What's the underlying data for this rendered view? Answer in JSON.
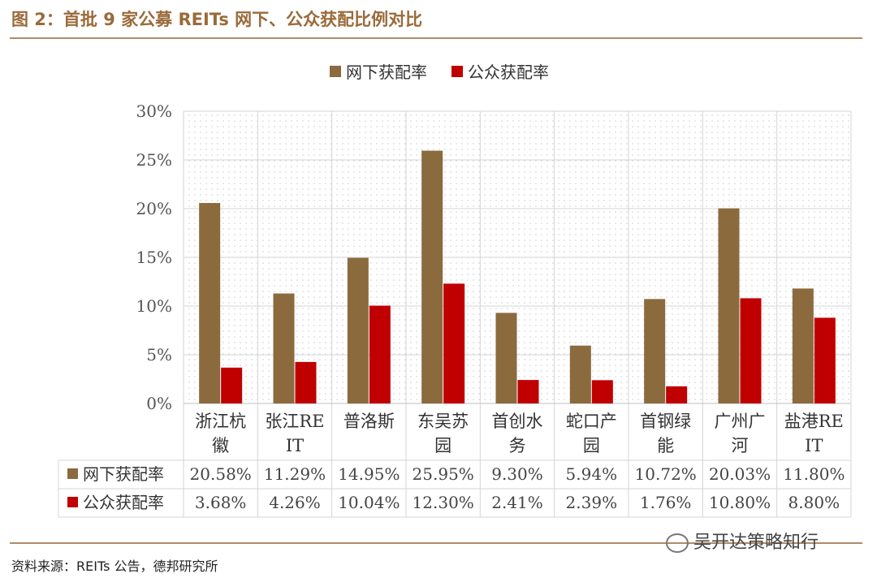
{
  "figure_title": "图 2：首批 9 家公募 REITs 网下、公众获配比例对比",
  "source": "资料来源：REITs 公告，德邦研究所",
  "watermark": "吴开达策略知行",
  "colors": {
    "series1": "#8b6a3e",
    "series2": "#c00000",
    "rule": "#b08b67",
    "title": "#9a6a3a"
  },
  "chart_data": {
    "type": "bar",
    "title": "",
    "xlabel": "",
    "ylabel": "",
    "ylim": [
      0,
      30
    ],
    "yticks": [
      "0%",
      "5%",
      "10%",
      "15%",
      "20%",
      "25%",
      "30%"
    ],
    "legend_position": "top-center",
    "grid": true,
    "categories": [
      [
        "浙江杭",
        "徽"
      ],
      [
        "张江RE",
        "IT"
      ],
      [
        "普洛斯"
      ],
      [
        "东吴苏",
        "园"
      ],
      [
        "首创水",
        "务"
      ],
      [
        "蛇口产",
        "园"
      ],
      [
        "首钢绿",
        "能"
      ],
      [
        "广州广",
        "河"
      ],
      [
        "盐港RE",
        "IT"
      ]
    ],
    "series": [
      {
        "name": "网下获配率",
        "values": [
          20.58,
          11.29,
          14.95,
          25.95,
          9.3,
          5.94,
          10.72,
          20.03,
          11.8
        ],
        "labels": [
          "20.58%",
          "11.29%",
          "14.95%",
          "25.95%",
          "9.30%",
          "5.94%",
          "10.72%",
          "20.03%",
          "11.80%"
        ]
      },
      {
        "name": "公众获配率",
        "values": [
          3.68,
          4.26,
          10.04,
          12.3,
          2.41,
          2.39,
          1.76,
          10.8,
          8.8
        ],
        "labels": [
          "3.68%",
          "4.26%",
          "10.04%",
          "12.30%",
          "2.41%",
          "2.39%",
          "1.76%",
          "10.80%",
          "8.80%"
        ]
      }
    ]
  }
}
